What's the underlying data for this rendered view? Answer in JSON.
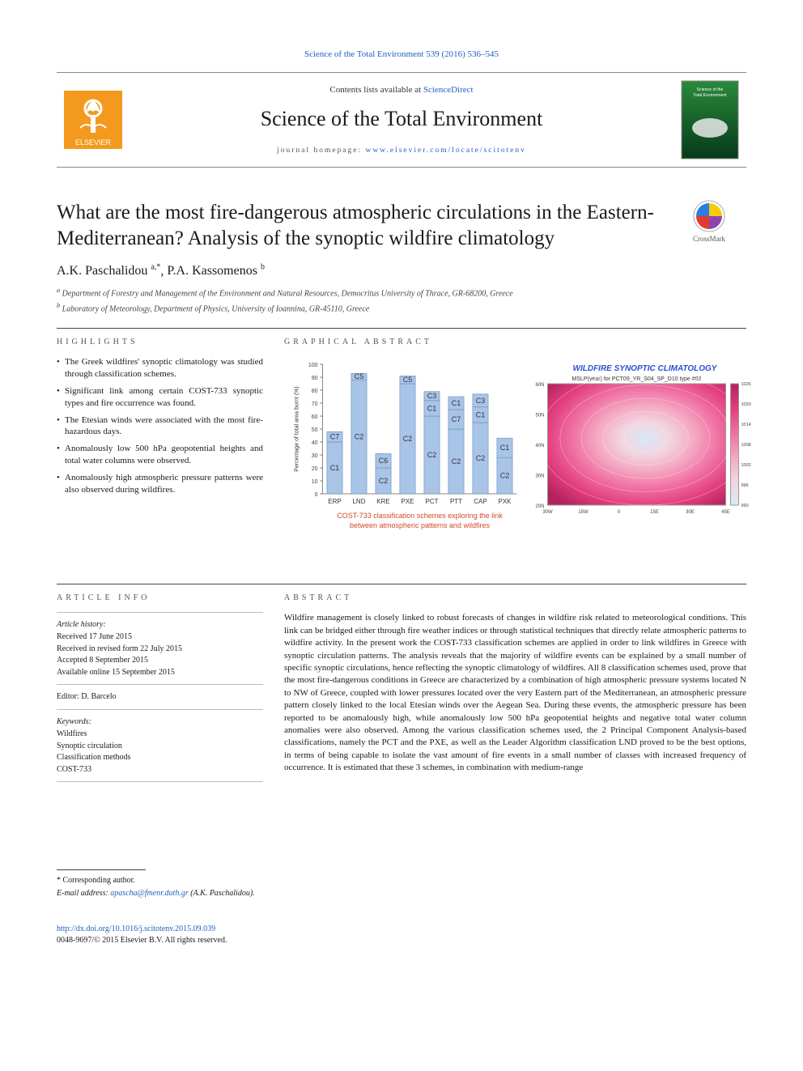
{
  "header_link": {
    "text": "Science of the Total Environment 539 (2016) 536–545",
    "color": "#2060c0"
  },
  "masthead": {
    "contents_prefix": "Contents lists available at ",
    "contents_link": "ScienceDirect",
    "journal_title": "Science of the Total Environment",
    "homepage_prefix": "journal homepage: ",
    "homepage_url": "www.elsevier.com/locate/scitotenv",
    "publisher_logo_label": "ELSEVIER",
    "publisher_logo_colors": {
      "bg": "#f39a1e",
      "tree": "#ffffff",
      "text": "#ffffff"
    },
    "cover_thumb": {
      "title_top": "Science of the Total Environment",
      "bg_top": "#2a8a3a",
      "bg_bottom": "#06391a",
      "disc": "#eaeaea"
    }
  },
  "crossmark": {
    "label": "CrossMark",
    "left": "#e23a2e",
    "right": "#f6c90e",
    "top": "#2a7de1",
    "bottom": "#8e44ad"
  },
  "article": {
    "title": "What are the most fire-dangerous atmospheric circulations in the Eastern-Mediterranean? Analysis of the synoptic wildfire climatology",
    "authors_html": [
      {
        "name": "A.K. Paschalidou",
        "sup": "a,*",
        "trailing": ", "
      },
      {
        "name": "P.A. Kassomenos",
        "sup": "b",
        "trailing": ""
      }
    ],
    "affiliations": [
      {
        "sup": "a",
        "text": "Department of Forestry and Management of the Environment and Natural Resources, Democritus University of Thrace, GR-68200, Greece"
      },
      {
        "sup": "b",
        "text": "Laboratory of Meteorology, Department of Physics, University of Ioannina, GR-45110, Greece"
      }
    ]
  },
  "highlights": {
    "head": "HIGHLIGHTS",
    "items": [
      "The Greek wildfires' synoptic climatology was studied through classification schemes.",
      "Significant link among certain COST-733 synoptic types and fire occurrence was found.",
      "The Etesian winds were associated with the most fire-hazardous days.",
      "Anomalously low 500 hPa geopotential heights and total water columns were observed.",
      "Anomalously high atmospheric pressure patterns were also observed during wildfires."
    ]
  },
  "graphical_abstract": {
    "head": "GRAPHICAL ABSTRACT",
    "chart": {
      "type": "stacked-bar",
      "y_label": "Percentage of total area burnt (%)",
      "y_lim": [
        0,
        100
      ],
      "y_tick_step": 10,
      "categories": [
        "ERP",
        "LND",
        "KRE",
        "PXE",
        "PCT",
        "PTT",
        "CAP",
        "PXK"
      ],
      "stack_labels_per_bar": [
        [
          "C1",
          "C7"
        ],
        [
          "C2",
          "C5"
        ],
        [
          "C2",
          "C6"
        ],
        [
          "C2",
          "C5"
        ],
        [
          "C2",
          "C1",
          "C3"
        ],
        [
          "C2",
          "C7",
          "C1"
        ],
        [
          "C2",
          "C1",
          "C3"
        ],
        [
          "C2",
          "C1"
        ]
      ],
      "values": [
        [
          40,
          8
        ],
        [
          88,
          5
        ],
        [
          20,
          11
        ],
        [
          85,
          6
        ],
        [
          60,
          12,
          7
        ],
        [
          50,
          15,
          10
        ],
        [
          55,
          12,
          10
        ],
        [
          28,
          15
        ]
      ],
      "bar_color": "#a8c4e6",
      "label_font": 9,
      "axis_color": "#888",
      "tick_color": "#444",
      "caption_line1": "COST-733 classification schemes exploring the link",
      "caption_line2": "between atmospheric patterns and wildfires",
      "caption_color": "#d04a2a"
    },
    "right_panel": {
      "title": "WILDFIRE SYNOPTIC CLIMATOLOGY",
      "title_color": "#2a4fd0",
      "subtitle": "MSLP(year) for PCT09_YR_S04_SP_D10 type #02",
      "gradient_stops": [
        "#d9e8f7",
        "#f2d5e0",
        "#f4a6c0",
        "#ef6ea2",
        "#e23d7c",
        "#b2225f"
      ],
      "scale_min": 990,
      "scale_max": 1026,
      "axis_left": [
        "60N",
        "50N",
        "40N",
        "30N",
        "20N"
      ],
      "axis_bottom": [
        "30W",
        "15W",
        "0",
        "15E",
        "30E",
        "45E"
      ]
    }
  },
  "article_info": {
    "head": "ARTICLE INFO",
    "history_head": "Article history:",
    "history": [
      "Received 17 June 2015",
      "Received in revised form 22 July 2015",
      "Accepted 8 September 2015",
      "Available online 15 September 2015"
    ],
    "editor_label": "Editor: ",
    "editor_name": "D. Barcelo",
    "keywords_head": "Keywords:",
    "keywords": [
      "Wildfires",
      "Synoptic circulation",
      "Classification methods",
      "COST-733"
    ]
  },
  "abstract": {
    "head": "ABSTRACT",
    "text": "Wildfire management is closely linked to robust forecasts of changes in wildfire risk related to meteorological conditions. This link can be bridged either through fire weather indices or through statistical techniques that directly relate atmospheric patterns to wildfire activity. In the present work the COST-733 classification schemes are applied in order to link wildfires in Greece with synoptic circulation patterns. The analysis reveals that the majority of wildfire events can be explained by a small number of specific synoptic circulations, hence reflecting the synoptic climatology of wildfires. All 8 classification schemes used, prove that the most fire-dangerous conditions in Greece are characterized by a combination of high atmospheric pressure systems located N to NW of Greece, coupled with lower pressures located over the very Eastern part of the Mediterranean, an atmospheric pressure pattern closely linked to the local Etesian winds over the Aegean Sea. During these events, the atmospheric pressure has been reported to be anomalously high, while anomalously low 500 hPa geopotential heights and negative total water column anomalies were also observed. Among the various classification schemes used, the 2 Principal Component Analysis-based classifications, namely the PCT and the PXE, as well as the Leader Algorithm classification LND proved to be the best options, in terms of being capable to isolate the vast amount of fire events in a small number of classes with increased frequency of occurrence. It is estimated that these 3 schemes, in combination with medium-range"
  },
  "footer": {
    "corresp_label": "* Corresponding author.",
    "email_prefix": "E-mail address: ",
    "email": "apascha@fmenr.duth.gr",
    "email_paren": " (A.K. Paschalidou).",
    "doi": "http://dx.doi.org/10.1016/j.scitotenv.2015.09.039",
    "issn_line": "0048-9697/© 2015 Elsevier B.V. All rights reserved."
  }
}
